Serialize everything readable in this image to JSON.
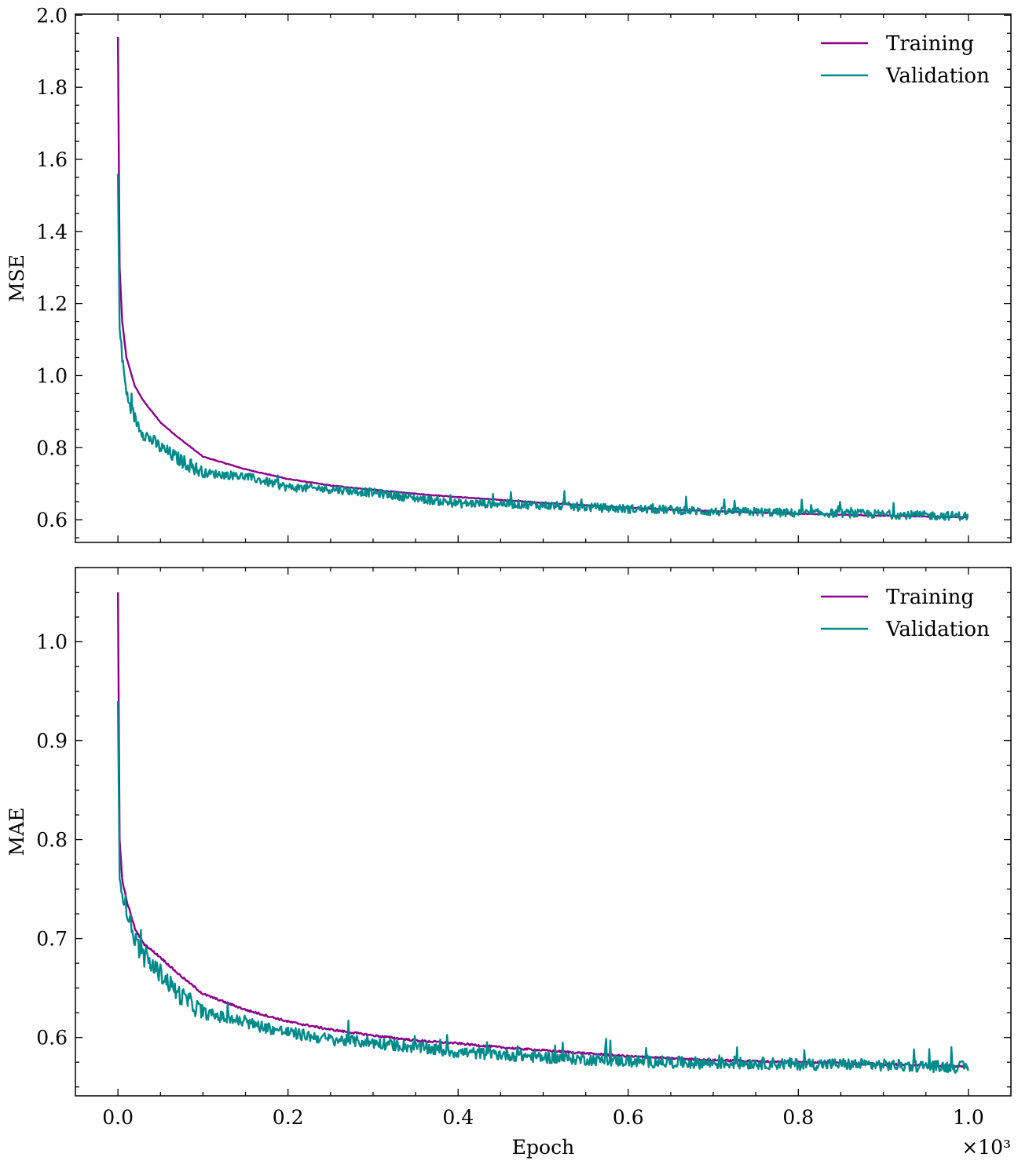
{
  "chart_data": [
    {
      "type": "line",
      "title": "",
      "xlabel": "",
      "ylabel": "MSE",
      "xlim": [
        -0.05,
        1.05
      ],
      "ylim": [
        0.537,
        2.003
      ],
      "x_tick_labels": [
        "0.0",
        "0.2",
        "0.4",
        "0.6",
        "0.8",
        "1.0"
      ],
      "x_ticks": [
        0.0,
        0.2,
        0.4,
        0.6,
        0.8,
        1.0
      ],
      "y_ticks": [
        0.6,
        0.8,
        1.0,
        1.2,
        1.4,
        1.6,
        1.8,
        2.0
      ],
      "y_tick_labels": [
        "0.6",
        "0.8",
        "1.0",
        "1.2",
        "1.4",
        "1.6",
        "1.8",
        "2.0"
      ],
      "grid": false,
      "legend_position": "top-right",
      "x": [
        0,
        0.002,
        0.005,
        0.01,
        0.02,
        0.03,
        0.05,
        0.07,
        0.1,
        0.15,
        0.2,
        0.25,
        0.3,
        0.35,
        0.4,
        0.45,
        0.5,
        0.55,
        0.6,
        0.65,
        0.7,
        0.75,
        0.8,
        0.85,
        0.9,
        0.95,
        1.0
      ],
      "series": [
        {
          "name": "Training",
          "color": "#8b008b",
          "noise": 0.0,
          "values": [
            1.94,
            1.3,
            1.15,
            1.05,
            0.97,
            0.93,
            0.87,
            0.83,
            0.775,
            0.74,
            0.713,
            0.695,
            0.683,
            0.672,
            0.663,
            0.655,
            0.647,
            0.64,
            0.633,
            0.628,
            0.624,
            0.62,
            0.617,
            0.614,
            0.611,
            0.609,
            0.607
          ]
        },
        {
          "name": "Validation",
          "color": "#008b8b",
          "noise": 0.012,
          "values": [
            1.56,
            1.13,
            1.05,
            0.95,
            0.88,
            0.84,
            0.8,
            0.77,
            0.73,
            0.72,
            0.69,
            0.685,
            0.675,
            0.66,
            0.645,
            0.645,
            0.64,
            0.635,
            0.63,
            0.628,
            0.622,
            0.622,
            0.618,
            0.618,
            0.615,
            0.612,
            0.61
          ]
        }
      ]
    },
    {
      "type": "line",
      "title": "",
      "xlabel": "Epoch",
      "x_offset_label": "×10³",
      "ylabel": "MAE",
      "xlim": [
        -0.05,
        1.05
      ],
      "ylim": [
        0.541,
        1.075
      ],
      "x_ticks": [
        0.0,
        0.2,
        0.4,
        0.6,
        0.8,
        1.0
      ],
      "x_tick_labels": [
        "0.0",
        "0.2",
        "0.4",
        "0.6",
        "0.8",
        "1.0"
      ],
      "y_ticks": [
        0.6,
        0.7,
        0.8,
        0.9,
        1.0
      ],
      "y_tick_labels": [
        "0.6",
        "0.7",
        "0.8",
        "0.9",
        "1.0"
      ],
      "grid": false,
      "legend_position": "top-right",
      "x": [
        0,
        0.002,
        0.005,
        0.01,
        0.02,
        0.03,
        0.05,
        0.07,
        0.1,
        0.15,
        0.2,
        0.25,
        0.3,
        0.35,
        0.4,
        0.45,
        0.5,
        0.55,
        0.6,
        0.65,
        0.7,
        0.75,
        0.8,
        0.85,
        0.9,
        0.95,
        1.0
      ],
      "series": [
        {
          "name": "Training",
          "color": "#8b008b",
          "noise": 0.0,
          "values": [
            1.05,
            0.8,
            0.76,
            0.739,
            0.71,
            0.695,
            0.681,
            0.665,
            0.644,
            0.628,
            0.616,
            0.608,
            0.602,
            0.597,
            0.594,
            0.59,
            0.587,
            0.584,
            0.581,
            0.579,
            0.577,
            0.576,
            0.575,
            0.574,
            0.573,
            0.572,
            0.57
          ]
        },
        {
          "name": "Validation",
          "color": "#008b8b",
          "noise": 0.006,
          "values": [
            0.94,
            0.76,
            0.75,
            0.73,
            0.7,
            0.68,
            0.665,
            0.645,
            0.625,
            0.615,
            0.605,
            0.598,
            0.595,
            0.59,
            0.585,
            0.583,
            0.58,
            0.578,
            0.576,
            0.575,
            0.574,
            0.574,
            0.573,
            0.573,
            0.572,
            0.571,
            0.57
          ]
        }
      ]
    }
  ]
}
